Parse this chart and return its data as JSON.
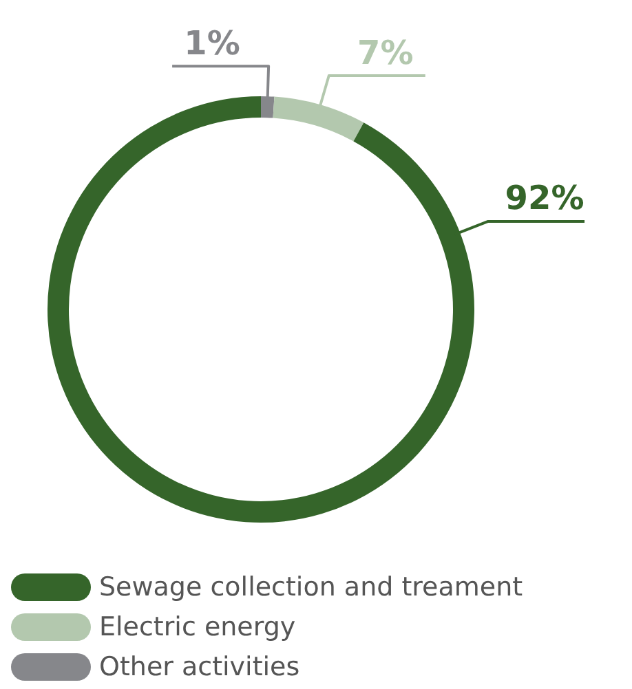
{
  "chart_data": {
    "type": "donut",
    "categories": [
      "Sewage collection and treament",
      "Electric energy",
      "Other activities"
    ],
    "values": [
      92,
      7,
      1
    ],
    "colors": [
      "#35652a",
      "#b3c8ae",
      "#86878b"
    ],
    "value_labels": [
      "92%",
      "7%",
      "1%"
    ],
    "legend": "bottom"
  }
}
